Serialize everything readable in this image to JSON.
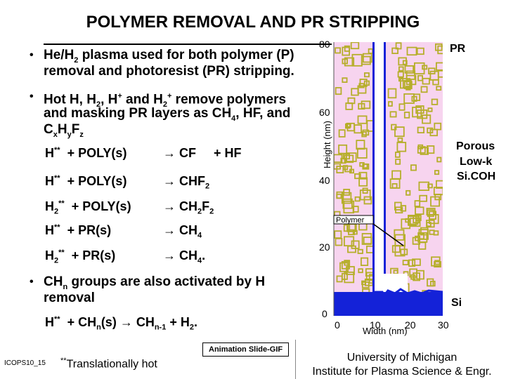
{
  "title": "POLYMER REMOVAL AND PR STRIPPING",
  "bullets": [
    {
      "symbol": "•",
      "line1": "He/H2 plasma used for both polymer (P)",
      "line2": "removal and photoresist (PR) stripping."
    },
    {
      "symbol": "•",
      "line1": "Hot H, H2, H+ and H2+ remove polymers",
      "line2": "and masking PR layers as CH4, HF, and",
      "line3": "CxHyFz"
    },
    {
      "symbol": "•",
      "line1": "CHn groups are also activated by H",
      "line2": "removal"
    }
  ],
  "reactions": [
    {
      "lhs": "H** + POLY(s)",
      "rhs": "→ CF    + HF"
    },
    {
      "lhs": "H** + POLY(s)",
      "rhs": "→ CHF2"
    },
    {
      "lhs": "H2** + POLY(s)",
      "rhs": "→ CH2F2"
    },
    {
      "lhs": "H** + PR(s)",
      "rhs": "→ CH4"
    },
    {
      "lhs": "H2** + PR(s)",
      "rhs": "→ CH4."
    }
  ],
  "activation_reaction": "H** + CHn(s) → CHn-1 + H2.",
  "footnote": "**Translationally hot",
  "button_label": "Animation Slide-GIF",
  "slide_id": "ICOPS10_15",
  "institution": {
    "line1": "University of Michigan",
    "line2": "Institute for Plasma Science & Engr."
  },
  "figure": {
    "y_ticks": [
      "80",
      "60",
      "40",
      "20",
      "0"
    ],
    "x_ticks": [
      "0",
      "10",
      "20",
      "30"
    ],
    "y_label": "Height (nm)",
    "x_label": "Width (nm)",
    "labels": {
      "pr": "PR",
      "porous": [
        "Porous",
        "Low-k",
        "Si.COH"
      ],
      "si": "Si",
      "polymer": "Polymer"
    },
    "colors": {
      "background": "#f7d4ef",
      "pores": "#b6ae2a",
      "si": "#1422d8"
    }
  }
}
